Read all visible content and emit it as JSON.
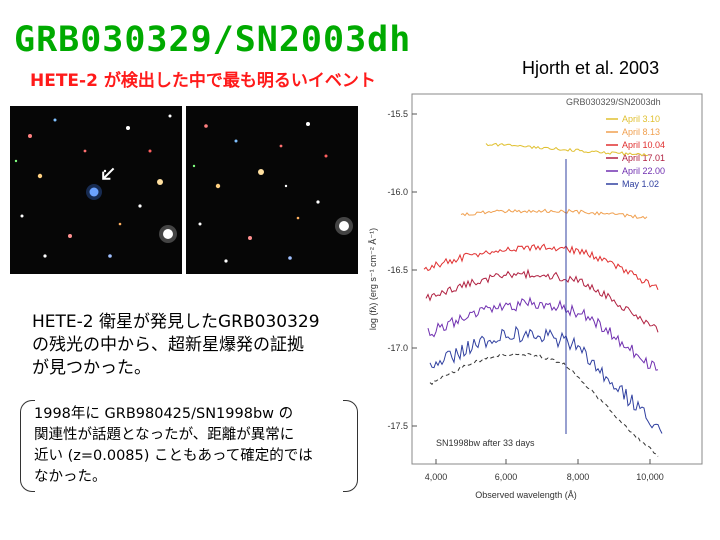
{
  "header": {
    "title": "GRB030329/SN2003dh",
    "subtitle": "HETE-2 が検出した中で最も明るいイベント",
    "credit": "Hjorth et al. 2003"
  },
  "caption": {
    "line1": "HETE-2 衛星が発見したGRB030329",
    "line2": "の残光の中から、超新星爆発の証拠",
    "line3": "が見つかった。"
  },
  "note": {
    "line1": "1998年に GRB980425/SN1998bw の",
    "line2": "関連性が話題となったが、距離が異常に",
    "line3": "近い (z=0.0085) こともあって確定的では",
    "line4": "なかった。"
  },
  "spectrum": {
    "title": "GRB030329/SN2003dh",
    "ylabel": "log (fλ) (erg s⁻¹ cm⁻² Å⁻¹)",
    "xlabel": "Observed wavelength (Å)",
    "xticks": [
      "4,000",
      "6,000",
      "8,000",
      "10,000"
    ],
    "yticks": [
      "-15.5",
      "-16.0",
      "-16.5",
      "-17.0",
      "-17.5"
    ],
    "legend": [
      {
        "label": "April 3.10",
        "color": "#e0c030"
      },
      {
        "label": "April 8.13",
        "color": "#f0a050"
      },
      {
        "label": "April 10.04",
        "color": "#e03030"
      },
      {
        "label": "April 17.01",
        "color": "#b02040"
      },
      {
        "label": "April 22.00",
        "color": "#7030b0"
      },
      {
        "label": "May 1.02",
        "color": "#3040a0"
      }
    ],
    "annotation": "SN1998bw after 33 days"
  },
  "photos": {
    "left_marker": "arrow-icon"
  }
}
